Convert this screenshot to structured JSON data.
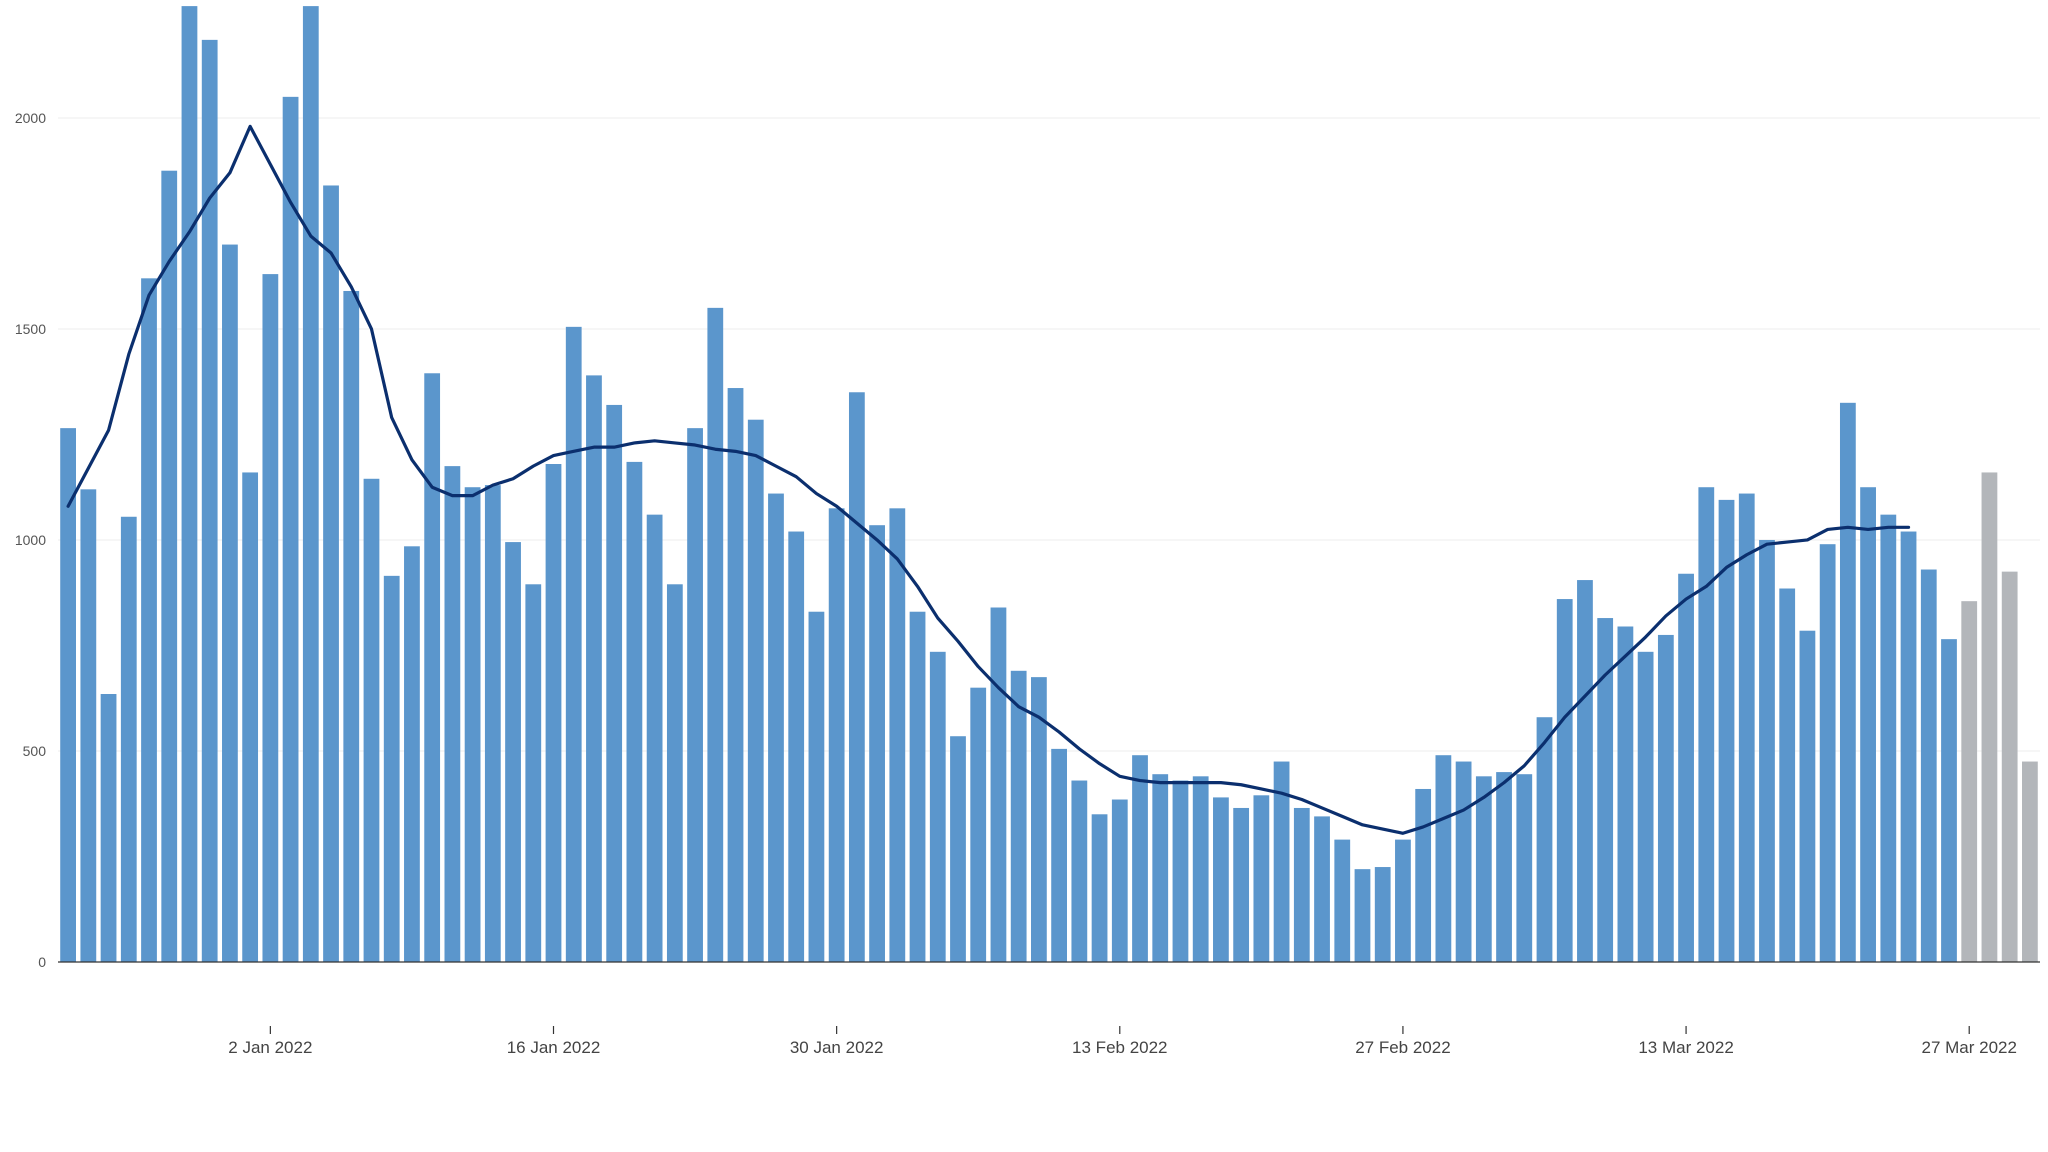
{
  "chart_data": {
    "type": "bar",
    "title": "",
    "xlabel": "",
    "ylabel": "",
    "ylim": [
      0,
      2270
    ],
    "y_ticks": [
      0,
      500,
      1000,
      1500,
      2000
    ],
    "x_ticks": [
      {
        "date": "2022-01-02",
        "label": "2 Jan 2022"
      },
      {
        "date": "2022-01-16",
        "label": "16 Jan 2022"
      },
      {
        "date": "2022-01-30",
        "label": "30 Jan 2022"
      },
      {
        "date": "2022-02-13",
        "label": "13 Feb 2022"
      },
      {
        "date": "2022-02-27",
        "label": "27 Feb 2022"
      },
      {
        "date": "2022-03-13",
        "label": "13 Mar 2022"
      },
      {
        "date": "2022-03-27",
        "label": "27 Mar 2022"
      }
    ],
    "grid": true,
    "legend": "none",
    "colors": {
      "bar": "#5b96cc",
      "bar_incomplete": "#b3b6ba",
      "line": "#0b2f6e",
      "grid": "#eeeeee",
      "axis": "#333333"
    },
    "series": [
      {
        "type": "bar",
        "start_date": "2021-12-23",
        "values": [
          1265,
          1120,
          635,
          1055,
          1620,
          1875,
          2265,
          2185,
          1700,
          1160,
          1630,
          2050,
          2265,
          1840,
          1590,
          1145,
          915,
          985,
          1395,
          1175,
          1125,
          1130,
          995,
          895,
          1180,
          1505,
          1390,
          1320,
          1185,
          1060,
          895,
          1265,
          1550,
          1360,
          1285,
          1110,
          1020,
          830,
          1075,
          1350,
          1035,
          1075,
          830,
          735,
          535,
          650,
          840,
          690,
          675,
          505,
          430,
          350,
          385,
          490,
          445,
          430,
          440,
          390,
          365,
          395,
          475,
          365,
          345,
          290,
          220,
          225,
          290,
          410,
          490,
          475,
          440,
          450,
          445,
          580,
          860,
          905,
          815,
          795,
          735,
          775,
          920,
          1125,
          1095,
          1110,
          1000,
          885,
          785,
          990,
          1325,
          1125,
          1060,
          1020,
          930,
          765,
          855,
          1160,
          925,
          475
        ],
        "incomplete_from_index": 94
      },
      {
        "type": "line",
        "start_date": "2021-12-23",
        "values": [
          1080,
          1170,
          1260,
          1440,
          1580,
          1660,
          1730,
          1810,
          1870,
          1980,
          1890,
          1800,
          1720,
          1680,
          1600,
          1500,
          1290,
          1190,
          1125,
          1105,
          1105,
          1130,
          1145,
          1175,
          1200,
          1210,
          1220,
          1220,
          1230,
          1235,
          1230,
          1225,
          1215,
          1210,
          1200,
          1175,
          1150,
          1110,
          1080,
          1040,
          1000,
          955,
          890,
          815,
          760,
          700,
          650,
          605,
          580,
          545,
          505,
          470,
          440,
          430,
          425,
          425,
          425,
          425,
          420,
          410,
          400,
          385,
          365,
          345,
          325,
          315,
          305,
          320,
          340,
          360,
          390,
          425,
          465,
          520,
          580,
          630,
          680,
          725,
          770,
          820,
          860,
          890,
          935,
          965,
          990,
          995,
          1000,
          1025,
          1030,
          1025,
          1030,
          1030
        ]
      }
    ]
  }
}
